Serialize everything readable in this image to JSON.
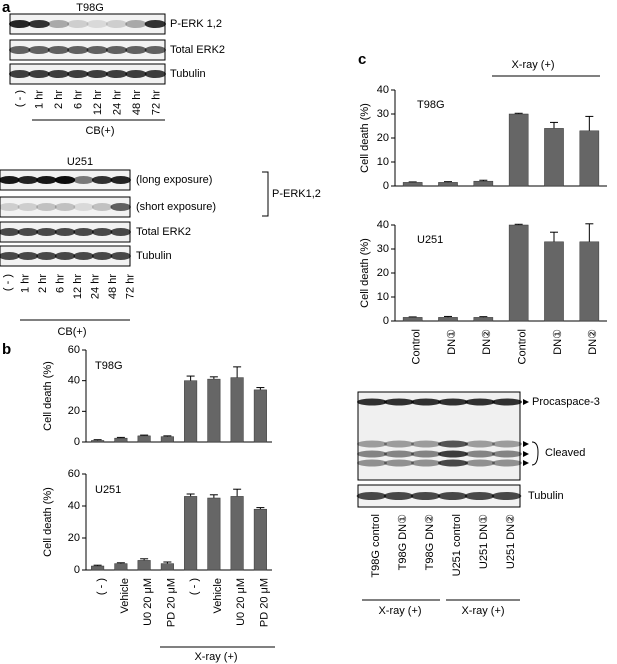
{
  "panel_a": {
    "label": "a",
    "t98g": {
      "title": "T98G",
      "rows": [
        "P-ERK 1,2",
        "Total ERK2",
        "Tubulin"
      ],
      "lanes": [
        "( - )",
        "1 hr",
        "2 hr",
        "6 hr",
        "12 hr",
        "24 hr",
        "48 hr",
        "72 hr"
      ],
      "group": "CB(+)"
    },
    "u251": {
      "title": "U251",
      "rows": [
        "(long exposure)",
        "(short exposure)",
        "Total ERK2",
        "Tubulin"
      ],
      "bracket": "P-ERK1,2",
      "lanes": [
        "( - )",
        "1 hr",
        "2 hr",
        "6 hr",
        "12 hr",
        "24 hr",
        "48 hr",
        "72 hr"
      ],
      "group": "CB(+)"
    }
  },
  "panel_b": {
    "label": "b",
    "group_label": "X-ray (+)"
  },
  "panel_c": {
    "label": "c",
    "group_label": "X-ray (+)",
    "blot": {
      "rows": [
        "Procaspace-3",
        "Cleaved",
        "Tubulin"
      ],
      "lanes": [
        "T98G control",
        "T98G DN①",
        "T98G DN②",
        "U251 control",
        "U251 DN①",
        "U251 DN②"
      ],
      "groups": [
        "X-ray (+)",
        "X-ray (+)"
      ]
    }
  },
  "chart_data": [
    {
      "type": "bar",
      "title": "T98G",
      "y_label": "Cell death (%)",
      "color": "#666666",
      "categories": [
        "( - )",
        "Vehicle",
        "U0 20 μM",
        "PD 20 μM",
        "( - )",
        "Vehicle",
        "U0 20 μM",
        "PD 20 μM"
      ],
      "values": [
        1,
        2.5,
        4,
        3.5,
        40,
        41,
        42,
        34
      ],
      "errors": [
        0.5,
        0.5,
        0.5,
        0.5,
        3,
        1.5,
        7,
        1.5
      ],
      "ylim": [
        0,
        60
      ],
      "yticks": [
        0,
        20,
        40,
        60
      ]
    },
    {
      "type": "bar",
      "title": "U251",
      "y_label": "Cell death (%)",
      "color": "#666666",
      "categories": [
        "( - )",
        "Vehicle",
        "U0 20 μM",
        "PD 20 μM",
        "( - )",
        "Vehicle",
        "U0 20 μM",
        "PD 20 μM"
      ],
      "values": [
        2.5,
        4,
        6,
        4,
        46,
        45,
        46,
        38
      ],
      "errors": [
        0.5,
        0.5,
        1,
        1,
        1.5,
        2,
        4.5,
        1
      ],
      "ylim": [
        0,
        60
      ],
      "yticks": [
        0,
        20,
        40,
        60
      ]
    },
    {
      "type": "bar",
      "title": "T98G",
      "y_label": "Cell death (%)",
      "color": "#666666",
      "categories": [
        "Control",
        "DN①",
        "DN②",
        "Control",
        "DN①",
        "DN②"
      ],
      "values": [
        1.5,
        1.5,
        2,
        30,
        24,
        23
      ],
      "errors": [
        0.2,
        0.3,
        0.4,
        0.3,
        2.5,
        6
      ],
      "ylim": [
        0,
        40
      ],
      "yticks": [
        0,
        10,
        20,
        30,
        40
      ]
    },
    {
      "type": "bar",
      "title": "U251",
      "y_label": "Cell death (%)",
      "color": "#666666",
      "categories": [
        "Control",
        "DN①",
        "DN②",
        "Control",
        "DN①",
        "DN②"
      ],
      "values": [
        1.5,
        1.5,
        1.5,
        40,
        33,
        33
      ],
      "errors": [
        0.2,
        0.4,
        0.3,
        0.3,
        4,
        7.5
      ],
      "ylim": [
        0,
        40
      ],
      "yticks": [
        0,
        10,
        20,
        30,
        40
      ]
    }
  ]
}
